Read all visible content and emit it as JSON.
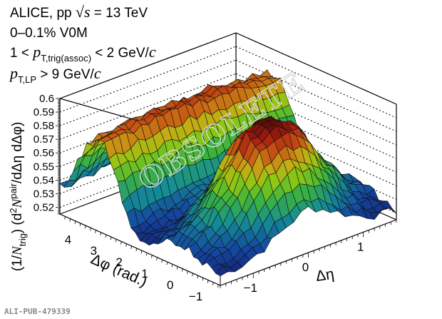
{
  "header": {
    "line1_prefix": "ALICE, pp ",
    "line1_sqrt": "√s",
    "line1_suffix": " = 13 TeV",
    "line2": "0–0.1% V0M",
    "line3_prefix": "1 < ",
    "line3_p": "p",
    "line3_sub": "T,trig(assoc)",
    "line3_suffix": " < 2 GeV/",
    "line3_c": "c",
    "line4_p": "p",
    "line4_sub": "T,LP",
    "line4_suffix": " > 9 GeV/",
    "line4_c": "c"
  },
  "watermark": "OBSOLETE",
  "pub_id": "ALI-PUB-479339",
  "chart_data": {
    "type": "surface3d",
    "title": "ALICE, pp √s = 13 TeV, 0–0.1% V0M, 1 < pT,trig(assoc) < 2 GeV/c, pT,LP > 9 GeV/c",
    "xlabel": "Δη",
    "ylabel": "Δφ (rad.)",
    "zlabel": "(1/N_trig) (d²N^pair/dΔη dΔφ)",
    "x_ticks": [
      "−1",
      "0",
      "1"
    ],
    "y_ticks": [
      "−1",
      "0",
      "1",
      "2",
      "3",
      "4"
    ],
    "z_ticks": [
      "0.52",
      "0.53",
      "0.54",
      "0.55",
      "0.56",
      "0.57",
      "0.58",
      "0.59",
      "0.6"
    ],
    "xlim": [
      -1.6,
      1.6
    ],
    "ylim": [
      -1.571,
      4.712
    ],
    "zlim": [
      0.515,
      0.6
    ],
    "grid": "dotted z-gridlines on back walls",
    "colormap": "blue-green-yellow-red-darkred (ROOT rainbow)",
    "features": [
      {
        "name": "near-side peak",
        "deta": 0.0,
        "dphi": 0.0,
        "z_max": 0.6
      },
      {
        "name": "away-side ridge",
        "dphi": 3.14,
        "deta_range": [
          -1.6,
          1.6
        ],
        "z_approx": 0.585
      },
      {
        "name": "minimum (valley)",
        "dphi": 1.2,
        "z_approx": 0.52
      }
    ],
    "surface_samples": {
      "deta": [
        -1.6,
        -1.2,
        -0.8,
        -0.4,
        0.0,
        0.4,
        0.8,
        1.2,
        1.6
      ],
      "dphi": [
        -1.5,
        -1.0,
        -0.5,
        0.0,
        0.5,
        1.0,
        1.5,
        2.0,
        2.5,
        3.0,
        3.5,
        4.0,
        4.5
      ],
      "z": [
        [
          0.522,
          0.524,
          0.53,
          0.54,
          0.548,
          0.54,
          0.53,
          0.524,
          0.522
        ],
        [
          0.525,
          0.53,
          0.545,
          0.565,
          0.575,
          0.565,
          0.545,
          0.53,
          0.525
        ],
        [
          0.53,
          0.54,
          0.56,
          0.585,
          0.595,
          0.585,
          0.56,
          0.54,
          0.53
        ],
        [
          0.532,
          0.545,
          0.568,
          0.595,
          0.6,
          0.595,
          0.568,
          0.545,
          0.532
        ],
        [
          0.53,
          0.54,
          0.56,
          0.585,
          0.595,
          0.585,
          0.56,
          0.54,
          0.53
        ],
        [
          0.525,
          0.53,
          0.545,
          0.56,
          0.57,
          0.56,
          0.545,
          0.53,
          0.525
        ],
        [
          0.522,
          0.524,
          0.53,
          0.538,
          0.542,
          0.538,
          0.53,
          0.524,
          0.522
        ],
        [
          0.53,
          0.532,
          0.535,
          0.538,
          0.54,
          0.538,
          0.535,
          0.532,
          0.53
        ],
        [
          0.56,
          0.562,
          0.564,
          0.566,
          0.566,
          0.566,
          0.564,
          0.562,
          0.56
        ],
        [
          0.582,
          0.584,
          0.586,
          0.587,
          0.588,
          0.587,
          0.586,
          0.584,
          0.582
        ],
        [
          0.58,
          0.582,
          0.584,
          0.586,
          0.586,
          0.586,
          0.584,
          0.582,
          0.58
        ],
        [
          0.56,
          0.562,
          0.564,
          0.565,
          0.566,
          0.565,
          0.564,
          0.562,
          0.56
        ],
        [
          0.535,
          0.537,
          0.54,
          0.542,
          0.543,
          0.542,
          0.54,
          0.537,
          0.535
        ]
      ]
    }
  }
}
